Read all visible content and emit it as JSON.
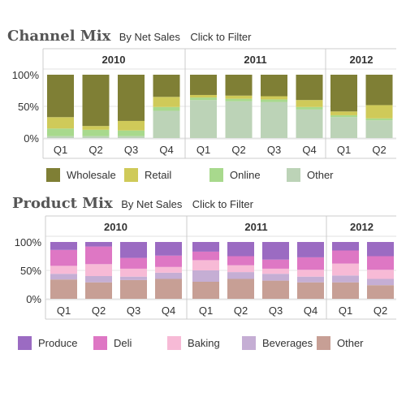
{
  "panels": [
    {
      "id": "channel",
      "title": "Channel Mix",
      "subtitle": "By Net Sales",
      "filter_label": "Click to Filter",
      "legend": [
        {
          "label": "Wholesale",
          "color": "#7f7f35"
        },
        {
          "label": "Retail",
          "color": "#cfca59"
        },
        {
          "label": "Online",
          "color": "#a8d98d"
        },
        {
          "label": "Other",
          "color": "#bcd3b7"
        }
      ]
    },
    {
      "id": "product",
      "title": "Product Mix",
      "subtitle": "By Net Sales",
      "filter_label": "Click to Filter",
      "legend": [
        {
          "label": "Produce",
          "color": "#9b6bc2"
        },
        {
          "label": "Deli",
          "color": "#de77c4"
        },
        {
          "label": "Baking",
          "color": "#f7bad6"
        },
        {
          "label": "Beverages",
          "color": "#c5aed4"
        },
        {
          "label": "Other",
          "color": "#c79f95"
        }
      ]
    }
  ],
  "chart_data": [
    {
      "type": "bar",
      "stacked": true,
      "percent_stacked": true,
      "title": "Channel Mix",
      "subtitle": "By Net Sales",
      "groups": [
        {
          "label": "2010",
          "categories": [
            "Q1",
            "Q2",
            "Q3",
            "Q4"
          ]
        },
        {
          "label": "2011",
          "categories": [
            "Q1",
            "Q2",
            "Q3",
            "Q4"
          ]
        },
        {
          "label": "2012",
          "categories": [
            "Q1",
            "Q2"
          ]
        }
      ],
      "yticks": [
        "100%",
        "50%",
        "0%"
      ],
      "ylim": [
        0,
        100
      ],
      "series": [
        {
          "name": "Other",
          "color": "#bcd3b7",
          "values": [
            3,
            3,
            3,
            43,
            60,
            58,
            57,
            45,
            33,
            28
          ]
        },
        {
          "name": "Online",
          "color": "#a8d98d",
          "values": [
            12,
            10,
            9,
            6,
            4,
            4,
            4,
            4,
            3,
            3
          ]
        },
        {
          "name": "Retail",
          "color": "#cfca59",
          "values": [
            18,
            6,
            15,
            16,
            4,
            5,
            5,
            11,
            6,
            21
          ]
        },
        {
          "name": "Wholesale",
          "color": "#7f7f35",
          "values": [
            67,
            81,
            73,
            35,
            32,
            33,
            34,
            40,
            58,
            48
          ]
        }
      ]
    },
    {
      "type": "bar",
      "stacked": true,
      "percent_stacked": true,
      "title": "Product Mix",
      "subtitle": "By Net Sales",
      "groups": [
        {
          "label": "2010",
          "categories": [
            "Q1",
            "Q2",
            "Q3",
            "Q4"
          ]
        },
        {
          "label": "2011",
          "categories": [
            "Q1",
            "Q2",
            "Q3",
            "Q4"
          ]
        },
        {
          "label": "2012",
          "categories": [
            "Q1",
            "Q2"
          ]
        }
      ],
      "yticks": [
        "100%",
        "50%",
        "0%"
      ],
      "ylim": [
        0,
        100
      ],
      "series": [
        {
          "name": "Other",
          "color": "#c79f95",
          "values": [
            34,
            29,
            33,
            35,
            30,
            35,
            32,
            29,
            29,
            24
          ]
        },
        {
          "name": "Beverages",
          "color": "#c5aed4",
          "values": [
            10,
            11,
            6,
            11,
            20,
            12,
            12,
            10,
            12,
            11
          ]
        },
        {
          "name": "Baking",
          "color": "#f7bad6",
          "values": [
            14,
            21,
            14,
            10,
            18,
            12,
            9,
            12,
            21,
            16
          ]
        },
        {
          "name": "Deli",
          "color": "#de77c4",
          "values": [
            28,
            31,
            19,
            20,
            15,
            16,
            16,
            22,
            23,
            24
          ]
        },
        {
          "name": "Produce",
          "color": "#9b6bc2",
          "values": [
            14,
            8,
            28,
            24,
            17,
            25,
            31,
            27,
            15,
            25
          ]
        }
      ]
    }
  ]
}
